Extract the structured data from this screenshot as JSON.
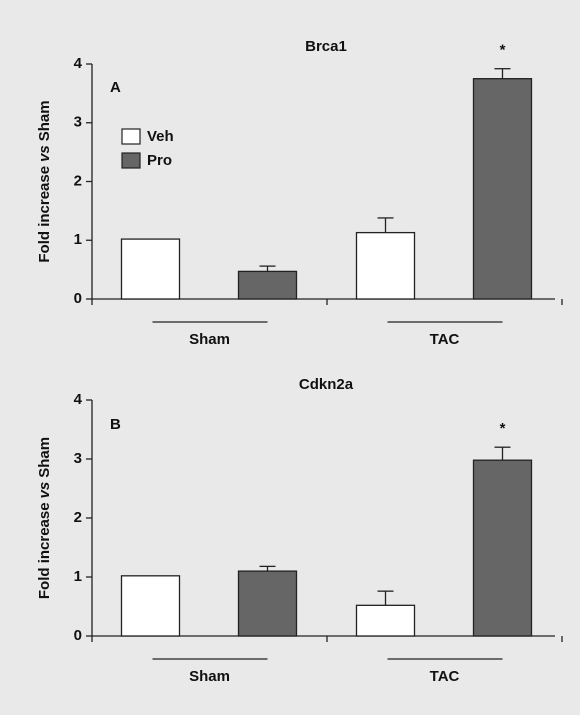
{
  "chart_data": [
    {
      "type": "bar",
      "title": "Brca1",
      "panel_label": "A",
      "y_label": [
        "Fold increase",
        "vs",
        "Sham"
      ],
      "categories": [
        "Sham",
        "TAC"
      ],
      "series": [
        {
          "name": "Veh",
          "color": "#ffffff",
          "values": [
            1.02,
            1.13
          ],
          "errors": [
            null,
            0.25
          ],
          "significance": [
            null,
            null
          ]
        },
        {
          "name": "Pro",
          "color": "#666666",
          "values": [
            0.47,
            3.75
          ],
          "errors": [
            0.09,
            0.17
          ],
          "significance": [
            null,
            "*"
          ]
        }
      ],
      "ylim": [
        0,
        4
      ],
      "yticks": [
        0,
        1,
        2,
        3,
        4
      ],
      "legend": true
    },
    {
      "type": "bar",
      "title": "Cdkn2a",
      "panel_label": "B",
      "y_label": [
        "Fold increase",
        "vs",
        "Sham"
      ],
      "categories": [
        "Sham",
        "TAC"
      ],
      "series": [
        {
          "name": "Veh",
          "color": "#ffffff",
          "values": [
            1.02,
            0.52
          ],
          "errors": [
            null,
            0.24
          ],
          "significance": [
            null,
            null
          ]
        },
        {
          "name": "Pro",
          "color": "#666666",
          "values": [
            1.1,
            2.98
          ],
          "errors": [
            0.08,
            0.22
          ],
          "significance": [
            null,
            "*"
          ]
        }
      ],
      "ylim": [
        0,
        4
      ],
      "yticks": [
        0,
        1,
        2,
        3,
        4
      ],
      "legend": false
    }
  ]
}
